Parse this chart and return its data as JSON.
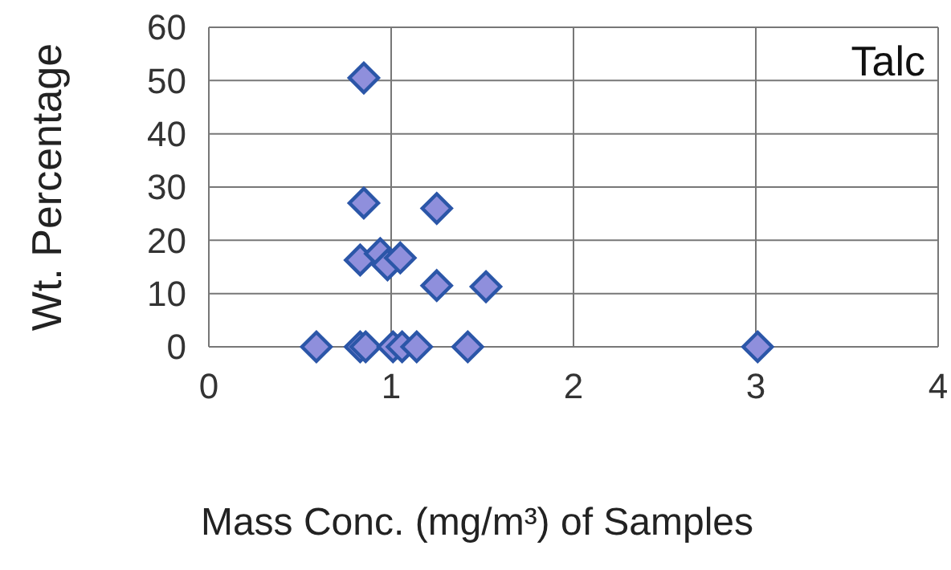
{
  "chart_data": {
    "type": "scatter",
    "xlabel": "Mass Conc. (mg/m³) of Samples",
    "ylabel": "Wt.  Percentage",
    "annotations": [
      "Talc"
    ],
    "x": [
      0.85,
      0.85,
      1.25,
      0.83,
      0.94,
      0.98,
      1.05,
      1.25,
      1.52,
      0.59,
      0.83,
      0.86,
      1.01,
      1.06,
      1.14,
      1.42,
      3.01
    ],
    "series": [
      {
        "color": "#8f8fdc",
        "values": [
          50.5,
          27,
          26,
          16.3,
          17.5,
          15.4,
          16.7,
          11.5,
          11.3,
          0,
          0,
          0,
          0,
          0,
          0,
          0,
          0
        ]
      }
    ],
    "xlim": [
      0,
      4
    ],
    "xticks": [
      0,
      1,
      2,
      3,
      4
    ],
    "ylim": [
      0,
      60
    ],
    "yticks": [
      0,
      10,
      20,
      30,
      40,
      50,
      60
    ],
    "grid": true,
    "marker": "diamond"
  }
}
